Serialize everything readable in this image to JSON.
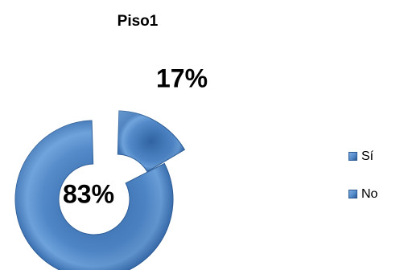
{
  "chart_data": {
    "type": "pie",
    "variant": "donut",
    "title": "Piso1",
    "categories": [
      "Sí",
      "No"
    ],
    "values": [
      17,
      83
    ],
    "data_labels": [
      "17%",
      "83%"
    ],
    "legend_position": "right",
    "colors": {
      "slice_fill": "#4f86c6",
      "slice_dark": "#2b5a93",
      "slice_light": "#7fb0e4",
      "legend_swatch": "#4f86c6"
    }
  }
}
